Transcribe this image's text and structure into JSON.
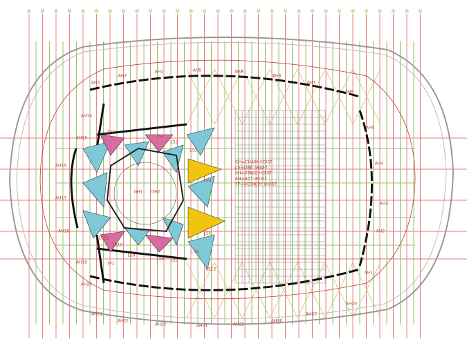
{
  "drawing": {
    "labels": [
      "AH3",
      "AH2",
      "AH1",
      "AH5",
      "AH9",
      "AH8",
      "AH7",
      "AH6",
      "AH5",
      "AH4",
      "AH3",
      "AH2",
      "AH1",
      "AH20",
      "AH27",
      "AH26",
      "AH25",
      "AH24",
      "AH23",
      "AH22",
      "AH21",
      "AH20",
      "AH19",
      "AH18",
      "AH17",
      "AH16",
      "AH15",
      "AH14"
    ],
    "small_labels": [
      "TP2",
      "LS1",
      "LS2",
      "LS3",
      "LS4",
      "LS5",
      "LS6",
      "LS7",
      "LS8",
      "LS9",
      "LS10",
      "LS11",
      "LS12",
      "TP1",
      "GH1",
      "GH2"
    ],
    "legend": [
      "GH=CHAIN HOIST",
      "LS=LINE SHAFT",
      "SH=STAGE HOIST",
      "AH=ACT HOIST",
      "TP=SCENERY HOIST"
    ]
  }
}
